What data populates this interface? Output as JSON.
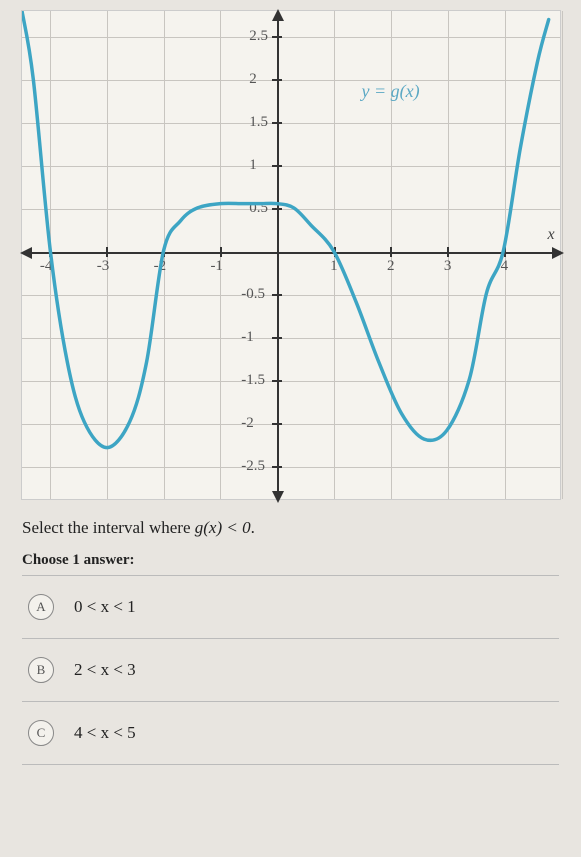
{
  "chart": {
    "type": "line",
    "xlim": [
      -4.5,
      5
    ],
    "ylim": [
      -2.9,
      2.8
    ],
    "xtick_step": 1,
    "ytick_step": 0.5,
    "xticks": [
      -4,
      -3,
      -2,
      -1,
      1,
      2,
      3,
      4
    ],
    "yticks": [
      2.5,
      2,
      1.5,
      1,
      0.5,
      -0.5,
      -1,
      -1.5,
      -2,
      -2.5
    ],
    "grid_color": "#c8c5c0",
    "axis_color": "#333333",
    "background_color": "#f5f3ee",
    "curve_color": "#3da5c4",
    "curve_width": 3.5,
    "function_label": "y = g(x)",
    "function_label_color": "#5ba8c4",
    "x_axis_symbol": "x",
    "points": [
      [
        -4.5,
        2.8
      ],
      [
        -4.3,
        2.0
      ],
      [
        -4.0,
        0.0
      ],
      [
        -3.7,
        -1.3
      ],
      [
        -3.4,
        -2.0
      ],
      [
        -3.0,
        -2.3
      ],
      [
        -2.6,
        -2.0
      ],
      [
        -2.3,
        -1.3
      ],
      [
        -2.0,
        0.0
      ],
      [
        -1.7,
        0.35
      ],
      [
        -1.4,
        0.5
      ],
      [
        -1.0,
        0.55
      ],
      [
        -0.6,
        0.55
      ],
      [
        -0.3,
        0.55
      ],
      [
        0.0,
        0.55
      ],
      [
        0.3,
        0.5
      ],
      [
        0.6,
        0.3
      ],
      [
        1.0,
        0.0
      ],
      [
        1.4,
        -0.6
      ],
      [
        1.8,
        -1.3
      ],
      [
        2.2,
        -1.9
      ],
      [
        2.6,
        -2.2
      ],
      [
        3.0,
        -2.1
      ],
      [
        3.4,
        -1.5
      ],
      [
        3.7,
        -0.5
      ],
      [
        4.0,
        0.0
      ],
      [
        4.3,
        1.2
      ],
      [
        4.6,
        2.2
      ],
      [
        4.8,
        2.7
      ]
    ]
  },
  "question": {
    "prompt_prefix": "Select the interval where ",
    "prompt_math": "g(x) < 0",
    "prompt_suffix": ".",
    "choose": "Choose 1 answer:"
  },
  "answers": [
    {
      "letter": "A",
      "text": "0 < x < 1"
    },
    {
      "letter": "B",
      "text": "2 < x < 3"
    },
    {
      "letter": "C",
      "text": "4 < x < 5"
    }
  ]
}
